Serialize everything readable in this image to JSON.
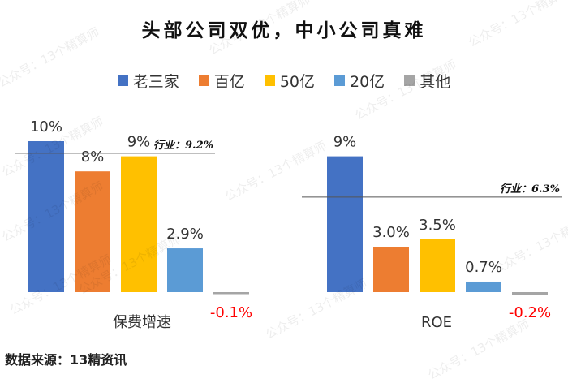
{
  "chart_data": {
    "type": "bar",
    "title": "头部公司双优，中小公司真难",
    "categories": [
      "保费增速",
      "ROE"
    ],
    "series": [
      {
        "name": "老三家",
        "color": "#4472C4",
        "values": [
          10,
          9
        ],
        "labels": [
          "10%",
          "9%"
        ]
      },
      {
        "name": "百亿",
        "color": "#ED7D31",
        "values": [
          8,
          3.0
        ],
        "labels": [
          "8%",
          "3.0%"
        ]
      },
      {
        "name": "50亿",
        "color": "#FFC000",
        "values": [
          9,
          3.5
        ],
        "labels": [
          "9%",
          "3.5%"
        ]
      },
      {
        "name": "20亿",
        "color": "#5B9BD5",
        "values": [
          2.9,
          0.7
        ],
        "labels": [
          "2.9%",
          "0.7%"
        ]
      },
      {
        "name": "其他",
        "color": "#A5A5A5",
        "values": [
          -0.1,
          -0.2
        ],
        "labels": [
          "-0.1%",
          "-0.2%"
        ]
      }
    ],
    "reference_lines": [
      {
        "category": "保费增速",
        "value": 9.2,
        "label": "行业：9.2%"
      },
      {
        "category": "ROE",
        "value": 6.3,
        "label": "行业：6.3%"
      }
    ],
    "negative_label_color": "#FF0000",
    "grid": false,
    "legend_position": "top",
    "ylim": [
      -0.2,
      10
    ]
  },
  "source": "数据来源：13精资讯",
  "watermark": "公众号：13个精算师"
}
